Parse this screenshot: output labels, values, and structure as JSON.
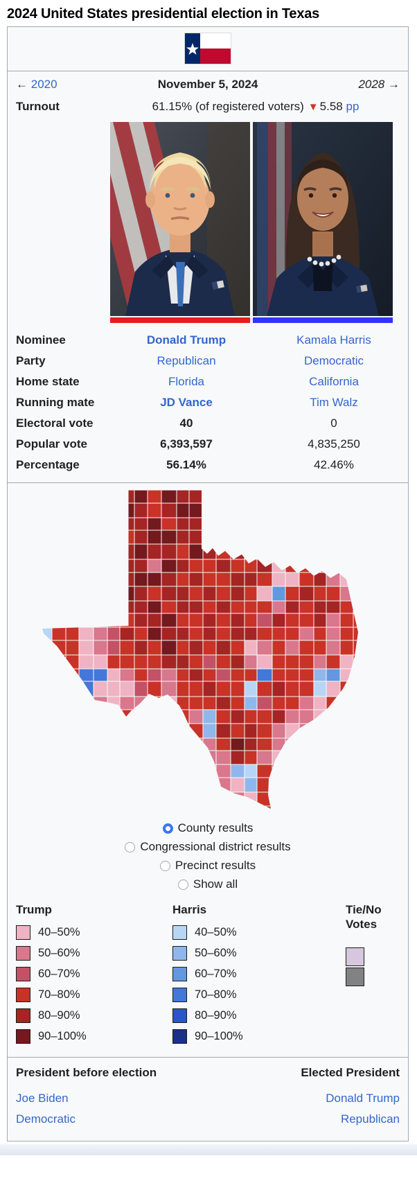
{
  "title": "2024 United States presidential election in Texas",
  "colors": {
    "link": "#3366cc",
    "infobox_border": "#a2a9b1",
    "infobox_bg": "#f8f9fa",
    "flag_navy": "#002868",
    "flag_red": "#BF0A30",
    "turnout_triangle": "#d0342c"
  },
  "nav": {
    "prev_arrow": "←",
    "prev": "2020",
    "date": "November 5, 2024",
    "next": "2028",
    "next_arrow": "→"
  },
  "turnout": {
    "label": "Turnout",
    "value": "61.15% (of registered voters)",
    "triangle": "▼",
    "change": "5.58",
    "unit": "pp"
  },
  "labels": {
    "nominee": "Nominee",
    "party": "Party",
    "home_state": "Home state",
    "running_mate": "Running mate",
    "electoral_vote": "Electoral vote",
    "popular_vote": "Popular vote",
    "percentage": "Percentage"
  },
  "trump": {
    "name": "Donald Trump",
    "party": "Republican",
    "home_state": "Florida",
    "running_mate": "JD Vance",
    "electoral_vote": "40",
    "popular_vote": "6,393,597",
    "percentage": "56.14%",
    "bar_color": "#E81B23"
  },
  "harris": {
    "name": "Kamala Harris",
    "party": "Democratic",
    "home_state": "California",
    "running_mate": "Tim Walz",
    "electoral_vote": "0",
    "popular_vote": "4,835,250",
    "percentage": "42.46%",
    "bar_color": "#3333FF"
  },
  "map": {
    "radios": [
      {
        "label": "County results",
        "selected": true
      },
      {
        "label": "Congressional district results",
        "selected": false
      },
      {
        "label": "Precinct results",
        "selected": false
      },
      {
        "label": "Show all",
        "selected": false
      }
    ],
    "palette": {
      "a": "#f0b3c3",
      "b": "#d9778c",
      "c": "#c35266",
      "d": "#c93227",
      "e": "#a42523",
      "f": "#74191d",
      "A": "#b7d6f6",
      "B": "#8fb7ec",
      "C": "#6397e0",
      "D": "#4377d8",
      "E": "#2b55c9",
      "F": "#1b3089"
    },
    "cols": [
      18,
      20,
      19,
      21,
      20,
      18,
      21,
      19,
      20,
      22,
      18,
      20,
      19,
      21,
      20,
      18,
      22,
      19,
      20,
      21,
      18,
      20,
      19,
      22
    ],
    "rows": [
      19,
      21,
      18,
      20,
      22,
      19,
      20,
      21,
      18,
      20,
      19,
      21,
      20,
      18,
      22,
      19,
      20,
      21,
      18,
      20,
      19,
      21,
      20,
      18
    ],
    "grid": [
      "ddddddefdfeedddddddddddd",
      "ddddddfedeffdddddddddddd",
      "ddddddeefdeedddddddddddd",
      "dddddddeffeedddddddddddd",
      "ddddddefeedfededdddedddd",
      "ddddddeebfeddeddeaddbddd",
      "ddddddeffededdeedaadebad",
      "ddddddfedeedededaCdeddbd",
      "ddddddeefdeededddbedeedb",
      "Addabddeefddededceddebdd",
      "Addabcedfeededeedddbdbdd",
      "dddabcdedfdededabdbddbdd",
      "bddaaddddeedcdebadddbdad",
      "dddDDabdcbdedcddDdddBCab",
      "dddDaaacdbddeddAdeddAadd",
      "ddddbabbdadddedBcddbaddd",
      "dddddbdbabdbBdeddebbaddd",
      "ddddddddbabdBededbabdddd",
      "dddddddddbabbdfedbbadddd",
      "ddddddddddbabbedbaaddddd",
      "ddddddddddddabBAdddddddd",
      "dddddddddddddbaBdddddddd",
      "ddddddddddddddbadddddddd",
      "dddddddddddddddddddddddd"
    ]
  },
  "legend": {
    "trump_header": "Trump",
    "harris_header": "Harris",
    "tie_header_line1": "Tie/No",
    "tie_header_line2": "Votes",
    "ranges": [
      "40–50%",
      "50–60%",
      "60–70%",
      "70–80%",
      "80–90%",
      "90–100%"
    ],
    "trump_colors": [
      "#f0b3c3",
      "#d9778c",
      "#c35266",
      "#c93227",
      "#a42523",
      "#74191d"
    ],
    "harris_colors": [
      "#b7d6f6",
      "#8fb7ec",
      "#6397e0",
      "#4377d8",
      "#2b55c9",
      "#1b3089"
    ],
    "tie_colors": [
      "#d6c7de",
      "#828282"
    ]
  },
  "footer": {
    "before_label": "President before election",
    "elected_label": "Elected President",
    "before_name": "Joe Biden",
    "before_party": "Democratic",
    "elected_name": "Donald Trump",
    "elected_party": "Republican"
  }
}
